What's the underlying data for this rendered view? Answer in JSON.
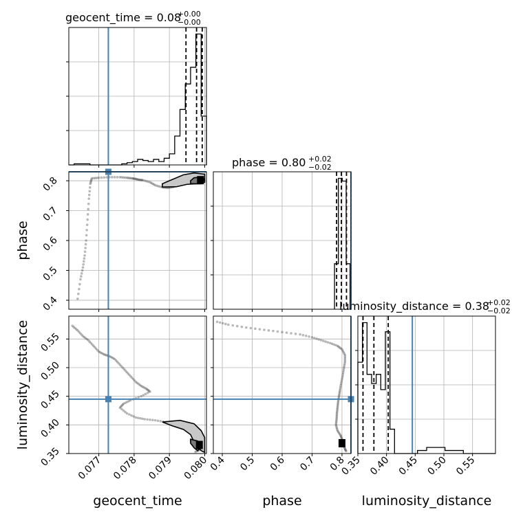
{
  "colors": {
    "truth": "#4682b4",
    "line": "#000000",
    "grid": "#b0b0b0"
  },
  "titles": {
    "geocent_time": {
      "prefix": "geocent_time = 0.08",
      "sup": "+0.00",
      "sub": "−0.00"
    },
    "phase": {
      "prefix": "phase = 0.80",
      "sup": "+0.02",
      "sub": "−0.02"
    },
    "luminosity_distance": {
      "prefix": "luminosity_distance = 0.38",
      "sup": "+0.02",
      "sub": "−0.02"
    }
  },
  "axis_labels": {
    "x": [
      "geocent_time",
      "phase",
      "luminosity_distance"
    ],
    "y": [
      "phase",
      "luminosity_distance"
    ]
  },
  "chart_data": {
    "type": "corner",
    "parameters": [
      "geocent_time",
      "phase",
      "luminosity_distance"
    ],
    "truths": {
      "geocent_time": 0.07727,
      "phase": 0.83,
      "luminosity_distance": 0.445
    },
    "ranges": {
      "geocent_time": [
        0.07615,
        0.08005
      ],
      "phase": [
        0.37,
        0.83
      ],
      "luminosity_distance": [
        0.35,
        0.59
      ]
    },
    "ticks": {
      "geocent_time": {
        "values": [
          0.077,
          0.078,
          0.079,
          0.08
        ],
        "labels": [
          "0.077",
          "0.078",
          "0.079",
          "0.080"
        ]
      },
      "phase": {
        "values": [
          0.4,
          0.5,
          0.6,
          0.7,
          0.8
        ],
        "labels": [
          "0.4",
          "0.5",
          "0.6",
          "0.7",
          "0.8"
        ]
      },
      "luminosity_distance": {
        "values": [
          0.35,
          0.4,
          0.45,
          0.5,
          0.55
        ],
        "labels": [
          "0.35",
          "0.40",
          "0.45",
          "0.50",
          "0.55"
        ]
      }
    },
    "quantiles": {
      "geocent_time": [
        0.07947,
        0.07977,
        0.07993
      ],
      "phase": [
        0.782,
        0.798,
        0.815
      ],
      "luminosity_distance": [
        0.359,
        0.378,
        0.403
      ]
    },
    "histograms": {
      "geocent_time": {
        "edges": [
          0.07615,
          0.0763,
          0.07645,
          0.0766,
          0.07675,
          0.0769,
          0.07705,
          0.0772,
          0.07735,
          0.0775,
          0.07765,
          0.0778,
          0.07795,
          0.0781,
          0.07825,
          0.0784,
          0.07855,
          0.0787,
          0.07885,
          0.079,
          0.07915,
          0.0793,
          0.07945,
          0.0796,
          0.07975,
          0.0799,
          0.08005
        ],
        "counts": [
          0,
          1,
          1,
          1,
          0,
          0,
          0,
          0,
          0,
          0,
          1,
          2,
          3,
          5,
          4,
          3,
          5,
          3,
          6,
          10,
          26,
          50,
          73,
          88,
          118,
          44
        ]
      },
      "phase": {
        "edges": [
          0.775,
          0.788,
          0.801,
          0.814,
          0.827
        ],
        "counts": [
          33,
          95,
          93,
          33
        ]
      },
      "luminosity_distance": {
        "edges": [
          0.35,
          0.358,
          0.366,
          0.374,
          0.382,
          0.39,
          0.398,
          0.406,
          0.414,
          0.422,
          0.43,
          0.438,
          0.446,
          0.454,
          0.462,
          0.47,
          0.478,
          0.486,
          0.494,
          0.502,
          0.51,
          0.518,
          0.526,
          0.534,
          0.542,
          0.55,
          0.558,
          0.566,
          0.574,
          0.582,
          0.59
        ],
        "counts": [
          30,
          43,
          26,
          23,
          26,
          21,
          40,
          8,
          0,
          0,
          0,
          0,
          0,
          1,
          1,
          2,
          2,
          2,
          2,
          1,
          1,
          1,
          1,
          0,
          0,
          0,
          0,
          0,
          0,
          0
        ]
      }
    },
    "samples": {
      "phase_vs_geocent_time": [
        [
          0.0764,
          0.405
        ],
        [
          0.07648,
          0.47
        ],
        [
          0.07655,
          0.51
        ],
        [
          0.0766,
          0.55
        ],
        [
          0.07664,
          0.6
        ],
        [
          0.07668,
          0.67
        ],
        [
          0.07672,
          0.74
        ],
        [
          0.07676,
          0.79
        ],
        [
          0.0768,
          0.808
        ],
        [
          0.077,
          0.81
        ],
        [
          0.0773,
          0.812
        ],
        [
          0.0776,
          0.812
        ],
        [
          0.0778,
          0.81
        ],
        [
          0.07795,
          0.808
        ],
        [
          0.07805,
          0.806
        ],
        [
          0.07815,
          0.803
        ],
        [
          0.07825,
          0.802
        ],
        [
          0.07845,
          0.795
        ],
        [
          0.0786,
          0.785
        ],
        [
          0.0788,
          0.778
        ],
        [
          0.07895,
          0.776
        ],
        [
          0.0791,
          0.779
        ],
        [
          0.0792,
          0.785
        ],
        [
          0.0793,
          0.79
        ],
        [
          0.0795,
          0.8
        ],
        [
          0.0796,
          0.805
        ],
        [
          0.0797,
          0.8
        ],
        [
          0.0798,
          0.8
        ],
        [
          0.0799,
          0.8
        ],
        [
          0.08,
          0.81
        ]
      ],
      "luminosity_distance_vs_geocent_time": [
        [
          0.07625,
          0.573
        ],
        [
          0.0764,
          0.565
        ],
        [
          0.07655,
          0.555
        ],
        [
          0.0767,
          0.548
        ],
        [
          0.07685,
          0.538
        ],
        [
          0.077,
          0.528
        ],
        [
          0.07715,
          0.523
        ],
        [
          0.0773,
          0.52
        ],
        [
          0.07745,
          0.515
        ],
        [
          0.0776,
          0.505
        ],
        [
          0.07775,
          0.495
        ],
        [
          0.0779,
          0.485
        ],
        [
          0.07805,
          0.475
        ],
        [
          0.0782,
          0.468
        ],
        [
          0.07835,
          0.463
        ],
        [
          0.07845,
          0.458
        ],
        [
          0.0782,
          0.45
        ],
        [
          0.0779,
          0.443
        ],
        [
          0.0777,
          0.437
        ],
        [
          0.0776,
          0.43
        ],
        [
          0.0778,
          0.42
        ],
        [
          0.07805,
          0.413
        ],
        [
          0.0783,
          0.41
        ],
        [
          0.0786,
          0.408
        ],
        [
          0.0789,
          0.405
        ],
        [
          0.0792,
          0.4
        ],
        [
          0.0794,
          0.395
        ],
        [
          0.0796,
          0.385
        ],
        [
          0.0797,
          0.375
        ],
        [
          0.0798,
          0.368
        ],
        [
          0.0799,
          0.362
        ],
        [
          0.07985,
          0.356
        ],
        [
          0.0797,
          0.352
        ]
      ],
      "luminosity_distance_vs_phase": [
        [
          0.383,
          0.58
        ],
        [
          0.42,
          0.575
        ],
        [
          0.48,
          0.57
        ],
        [
          0.54,
          0.566
        ],
        [
          0.6,
          0.562
        ],
        [
          0.66,
          0.558
        ],
        [
          0.7,
          0.553
        ],
        [
          0.73,
          0.548
        ],
        [
          0.76,
          0.543
        ],
        [
          0.785,
          0.538
        ],
        [
          0.8,
          0.532
        ],
        [
          0.81,
          0.522
        ],
        [
          0.81,
          0.51
        ],
        [
          0.806,
          0.498
        ],
        [
          0.802,
          0.485
        ],
        [
          0.797,
          0.472
        ],
        [
          0.793,
          0.46
        ],
        [
          0.79,
          0.45
        ],
        [
          0.787,
          0.44
        ],
        [
          0.785,
          0.43
        ],
        [
          0.783,
          0.42
        ],
        [
          0.782,
          0.41
        ],
        [
          0.78,
          0.4
        ],
        [
          0.785,
          0.39
        ],
        [
          0.795,
          0.382
        ],
        [
          0.8,
          0.375
        ],
        [
          0.805,
          0.365
        ],
        [
          0.81,
          0.358
        ],
        [
          0.815,
          0.353
        ]
      ]
    },
    "contours": {
      "phase_vs_geocent_time": [
        [
          [
            0.0788,
            0.779
          ],
          [
            0.0792,
            0.78
          ],
          [
            0.0795,
            0.788
          ],
          [
            0.0798,
            0.79
          ],
          [
            0.08,
            0.795
          ],
          [
            0.08,
            0.822
          ],
          [
            0.0797,
            0.826
          ],
          [
            0.0794,
            0.82
          ],
          [
            0.0792,
            0.81
          ],
          [
            0.079,
            0.8
          ],
          [
            0.0788,
            0.79
          ],
          [
            0.0788,
            0.779
          ]
        ],
        [
          [
            0.0796,
            0.79
          ],
          [
            0.0799,
            0.79
          ],
          [
            0.08,
            0.805
          ],
          [
            0.0799,
            0.812
          ],
          [
            0.0797,
            0.81
          ],
          [
            0.0796,
            0.8
          ],
          [
            0.0796,
            0.79
          ]
        ]
      ],
      "luminosity_distance_vs_geocent_time": [
        [
          [
            0.0788,
            0.405
          ],
          [
            0.0793,
            0.408
          ],
          [
            0.0797,
            0.402
          ],
          [
            0.0799,
            0.39
          ],
          [
            0.08,
            0.378
          ],
          [
            0.08,
            0.352
          ],
          [
            0.0799,
            0.355
          ],
          [
            0.0797,
            0.37
          ],
          [
            0.0796,
            0.383
          ],
          [
            0.0794,
            0.392
          ],
          [
            0.0791,
            0.398
          ],
          [
            0.0788,
            0.405
          ]
        ],
        [
          [
            0.0796,
            0.375
          ],
          [
            0.0798,
            0.372
          ],
          [
            0.0799,
            0.362
          ],
          [
            0.0798,
            0.355
          ],
          [
            0.0797,
            0.36
          ],
          [
            0.0796,
            0.368
          ],
          [
            0.0796,
            0.375
          ]
        ]
      ]
    },
    "dense": {
      "phase_vs_geocent_time": [
        0.07988,
        0.802
      ],
      "luminosity_distance_vs_geocent_time": [
        0.07985,
        0.365
      ],
      "luminosity_distance_vs_phase": [
        0.8,
        0.368
      ]
    }
  }
}
